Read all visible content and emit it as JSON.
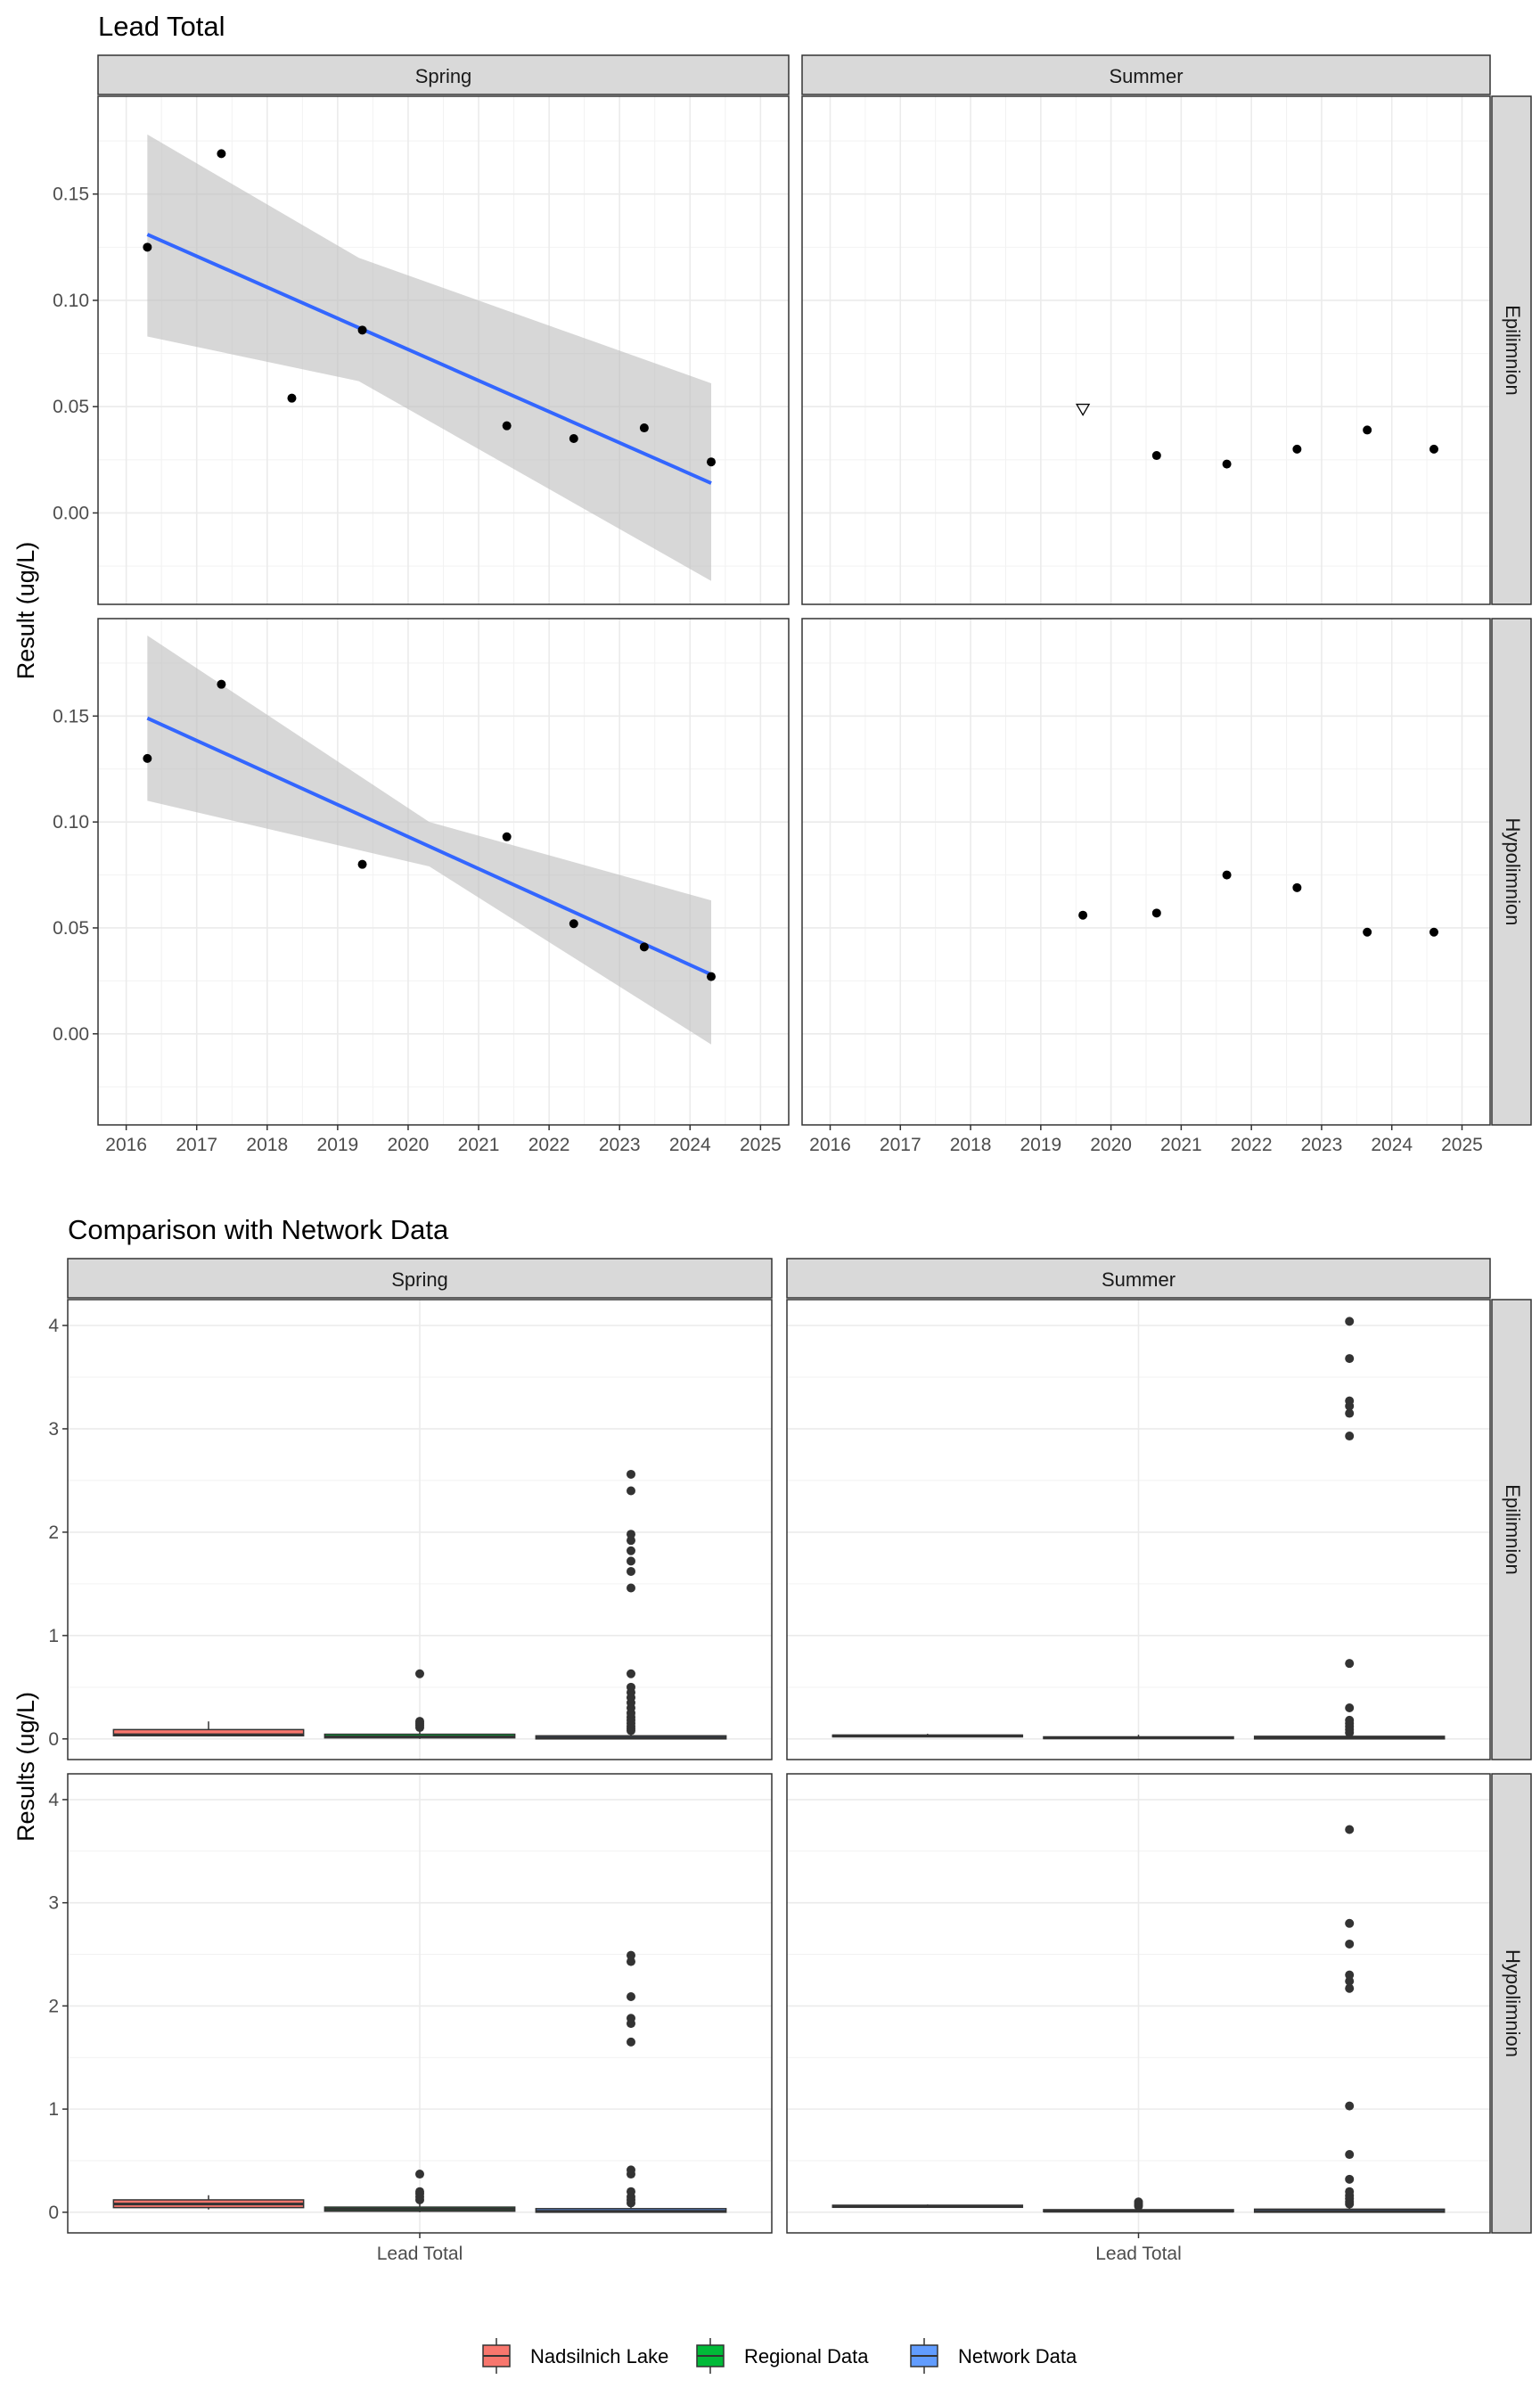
{
  "figure_titles": {
    "top": "Lead Total",
    "bottom": "Comparison with Network Data"
  },
  "colors": {
    "fit_line": "#3366ff",
    "ribbon": "#bfbfbf",
    "strip_bg": "#d9d9d9",
    "nadsilnich": "#f8766d",
    "regional": "#00ba38",
    "network": "#619cff"
  },
  "chart_data": [
    {
      "type": "scatter",
      "title": "Lead Total",
      "xlabel": "",
      "ylabel": "Result (ug/L)",
      "facet_cols": [
        "Spring",
        "Summer"
      ],
      "facet_rows": [
        "Epilimnion",
        "Hypolimnion"
      ],
      "xlim": [
        2015.6,
        2025.4
      ],
      "ylim": [
        -0.043,
        0.196
      ],
      "x_ticks": [
        2016,
        2017,
        2018,
        2019,
        2020,
        2021,
        2022,
        2023,
        2024,
        2025
      ],
      "x_tick_labels": [
        "2016",
        "2017",
        "2018",
        "2019",
        "2020",
        "2021",
        "2022",
        "2023",
        "2024",
        "2025"
      ],
      "y_ticks": [
        0.0,
        0.05,
        0.1,
        0.15
      ],
      "y_tick_labels": [
        "0.00",
        "0.05",
        "0.10",
        "0.15"
      ],
      "panels": [
        {
          "col": "Spring",
          "row": "Epilimnion",
          "points": [
            {
              "x": 2016.3,
              "y": 0.125
            },
            {
              "x": 2017.35,
              "y": 0.169
            },
            {
              "x": 2018.35,
              "y": 0.054
            },
            {
              "x": 2019.35,
              "y": 0.086
            },
            {
              "x": 2021.4,
              "y": 0.041
            },
            {
              "x": 2022.35,
              "y": 0.035
            },
            {
              "x": 2023.35,
              "y": 0.04
            },
            {
              "x": 2024.3,
              "y": 0.024
            }
          ],
          "fit": {
            "x": [
              2016.3,
              2024.3
            ],
            "y": [
              0.131,
              0.014
            ]
          },
          "ribbon": {
            "x": [
              2016.3,
              2019.3,
              2024.3
            ],
            "upper": [
              0.178,
              0.12,
              0.061
            ],
            "lower": [
              0.083,
              0.062,
              -0.032
            ]
          }
        },
        {
          "col": "Summer",
          "row": "Epilimnion",
          "points": [
            {
              "x": 2019.6,
              "y": 0.049,
              "shape": "triangle-open"
            },
            {
              "x": 2020.65,
              "y": 0.027
            },
            {
              "x": 2021.65,
              "y": 0.023
            },
            {
              "x": 2022.65,
              "y": 0.03
            },
            {
              "x": 2023.65,
              "y": 0.039
            },
            {
              "x": 2024.6,
              "y": 0.03
            }
          ]
        },
        {
          "col": "Spring",
          "row": "Hypolimnion",
          "points": [
            {
              "x": 2016.3,
              "y": 0.13
            },
            {
              "x": 2017.35,
              "y": 0.165
            },
            {
              "x": 2019.35,
              "y": 0.08
            },
            {
              "x": 2021.4,
              "y": 0.093
            },
            {
              "x": 2022.35,
              "y": 0.052
            },
            {
              "x": 2023.35,
              "y": 0.041
            },
            {
              "x": 2024.3,
              "y": 0.027
            }
          ],
          "fit": {
            "x": [
              2016.3,
              2024.3
            ],
            "y": [
              0.149,
              0.028
            ]
          },
          "ribbon": {
            "x": [
              2016.3,
              2020.3,
              2024.3
            ],
            "upper": [
              0.188,
              0.1,
              0.063
            ],
            "lower": [
              0.11,
              0.079,
              -0.005
            ]
          }
        },
        {
          "col": "Summer",
          "row": "Hypolimnion",
          "points": [
            {
              "x": 2019.6,
              "y": 0.056
            },
            {
              "x": 2020.65,
              "y": 0.057
            },
            {
              "x": 2021.65,
              "y": 0.075
            },
            {
              "x": 2022.65,
              "y": 0.069
            },
            {
              "x": 2023.65,
              "y": 0.048
            },
            {
              "x": 2024.6,
              "y": 0.048
            }
          ]
        }
      ]
    },
    {
      "type": "box",
      "title": "Comparison with Network Data",
      "xlabel": "Lead Total",
      "ylabel": "Results (ug/L)",
      "facet_cols": [
        "Spring",
        "Summer"
      ],
      "facet_rows": [
        "Epilimnion",
        "Hypolimnion"
      ],
      "ylim": [
        -0.2,
        4.25
      ],
      "y_ticks": [
        0,
        1,
        2,
        3,
        4
      ],
      "y_tick_labels": [
        "0",
        "1",
        "2",
        "3",
        "4"
      ],
      "legend": [
        "Nadsilnich Lake",
        "Regional Data",
        "Network Data"
      ],
      "legend_position": "bottom",
      "panels": [
        {
          "col": "Spring",
          "row": "Epilimnion",
          "boxes": [
            {
              "group": "Nadsilnich Lake",
              "q1": 0.03,
              "median": 0.04,
              "q3": 0.09,
              "lo": 0.024,
              "hi": 0.169,
              "outliers": []
            },
            {
              "group": "Regional Data",
              "q1": 0.01,
              "median": 0.02,
              "q3": 0.045,
              "lo": 0.0,
              "hi": 0.09,
              "outliers": [
                0.11,
                0.13,
                0.15,
                0.17,
                0.63
              ]
            },
            {
              "group": "Network Data",
              "q1": 0.0,
              "median": 0.01,
              "q3": 0.03,
              "lo": 0.0,
              "hi": 0.07,
              "outliers": [
                0.08,
                0.1,
                0.12,
                0.15,
                0.18,
                0.21,
                0.25,
                0.3,
                0.35,
                0.4,
                0.45,
                0.5,
                0.63,
                1.46,
                1.62,
                1.72,
                1.82,
                1.92,
                1.98,
                2.4,
                2.56
              ]
            }
          ]
        },
        {
          "col": "Summer",
          "row": "Epilimnion",
          "boxes": [
            {
              "group": "Nadsilnich Lake",
              "q1": 0.026,
              "median": 0.03,
              "q3": 0.037,
              "lo": 0.023,
              "hi": 0.049,
              "outliers": []
            },
            {
              "group": "Regional Data",
              "q1": 0.005,
              "median": 0.01,
              "q3": 0.02,
              "lo": 0.0,
              "hi": 0.04,
              "outliers": []
            },
            {
              "group": "Network Data",
              "q1": 0.0,
              "median": 0.01,
              "q3": 0.025,
              "lo": 0.0,
              "hi": 0.05,
              "outliers": [
                0.06,
                0.09,
                0.12,
                0.15,
                0.18,
                0.3,
                0.73,
                2.93,
                3.15,
                3.22,
                3.27,
                3.68,
                4.04
              ]
            }
          ]
        },
        {
          "col": "Spring",
          "row": "Hypolimnion",
          "boxes": [
            {
              "group": "Nadsilnich Lake",
              "q1": 0.045,
              "median": 0.08,
              "q3": 0.12,
              "lo": 0.027,
              "hi": 0.165,
              "outliers": []
            },
            {
              "group": "Regional Data",
              "q1": 0.01,
              "median": 0.03,
              "q3": 0.05,
              "lo": 0.0,
              "hi": 0.1,
              "outliers": [
                0.12,
                0.15,
                0.18,
                0.2,
                0.37
              ]
            },
            {
              "group": "Network Data",
              "q1": 0.0,
              "median": 0.01,
              "q3": 0.035,
              "lo": 0.0,
              "hi": 0.08,
              "outliers": [
                0.09,
                0.12,
                0.15,
                0.2,
                0.37,
                0.41,
                1.65,
                1.83,
                1.88,
                2.09,
                2.43,
                2.49
              ]
            }
          ]
        },
        {
          "col": "Summer",
          "row": "Hypolimnion",
          "boxes": [
            {
              "group": "Nadsilnich Lake",
              "q1": 0.048,
              "median": 0.057,
              "q3": 0.068,
              "lo": 0.048,
              "hi": 0.075,
              "outliers": []
            },
            {
              "group": "Regional Data",
              "q1": 0.005,
              "median": 0.01,
              "q3": 0.025,
              "lo": 0.0,
              "hi": 0.05,
              "outliers": [
                0.06,
                0.08,
                0.1
              ]
            },
            {
              "group": "Network Data",
              "q1": 0.0,
              "median": 0.01,
              "q3": 0.03,
              "lo": 0.0,
              "hi": 0.07,
              "outliers": [
                0.08,
                0.1,
                0.13,
                0.16,
                0.2,
                0.32,
                0.56,
                1.03,
                2.17,
                2.24,
                2.3,
                2.6,
                2.8,
                3.71
              ]
            }
          ]
        }
      ]
    }
  ]
}
